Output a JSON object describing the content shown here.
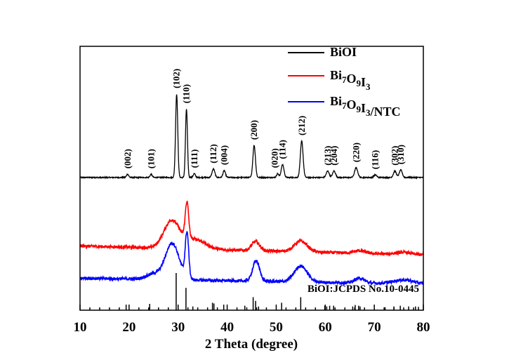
{
  "chart_data": {
    "type": "line",
    "title": "",
    "xlabel": "2 Theta (degree)",
    "ylabel": "",
    "xlim": [
      10,
      80
    ],
    "xticks": [
      "10",
      "20",
      "30",
      "40",
      "50",
      "60",
      "70",
      "80"
    ],
    "yticks_visible": false,
    "legend": {
      "placement": "top-right",
      "entries": [
        {
          "series": "BiOI",
          "base": "BiOI",
          "parts": []
        },
        {
          "series": "Bi7O9I3",
          "base": "Bi",
          "parts": [
            [
              "7",
              "sub"
            ],
            [
              "O",
              ""
            ],
            [
              "9",
              "sub"
            ],
            [
              "I",
              ""
            ],
            [
              "3",
              "sub"
            ]
          ]
        },
        {
          "series": "Bi7O9I3/NTC",
          "base": "Bi",
          "parts": [
            [
              "7",
              "sub"
            ],
            [
              "O",
              ""
            ],
            [
              "9",
              "sub"
            ],
            [
              "I",
              ""
            ],
            [
              "3",
              "sub"
            ],
            [
              "/NTC",
              ""
            ]
          ]
        }
      ]
    },
    "series": [
      {
        "name": "BiOI",
        "color": "#000000",
        "baseline": 6.2,
        "noise": 0.05,
        "peaks": [
          {
            "x": 19.7,
            "h": 0.15,
            "w": 0.22,
            "label": "(002)"
          },
          {
            "x": 24.5,
            "h": 0.15,
            "w": 0.22,
            "label": "(101)"
          },
          {
            "x": 29.7,
            "h": 3.9,
            "w": 0.22,
            "label": "(102)"
          },
          {
            "x": 31.7,
            "h": 3.2,
            "w": 0.2,
            "label": "(110)"
          },
          {
            "x": 33.3,
            "h": 0.18,
            "w": 0.22,
            "label": "(111)"
          },
          {
            "x": 37.2,
            "h": 0.4,
            "w": 0.28,
            "label": "(112)"
          },
          {
            "x": 39.4,
            "h": 0.32,
            "w": 0.25,
            "label": "(004)"
          },
          {
            "x": 45.5,
            "h": 1.5,
            "w": 0.26,
            "label": "(200)"
          },
          {
            "x": 50.3,
            "h": 0.18,
            "w": 0.22,
            "label": "(020)"
          },
          {
            "x": 51.3,
            "h": 0.6,
            "w": 0.28,
            "label": "(114)"
          },
          {
            "x": 55.2,
            "h": 1.7,
            "w": 0.28,
            "label": "(212)"
          },
          {
            "x": 60.5,
            "h": 0.3,
            "w": 0.3,
            "label": "(213)"
          },
          {
            "x": 61.8,
            "h": 0.3,
            "w": 0.3,
            "label": "(204)"
          },
          {
            "x": 66.3,
            "h": 0.45,
            "w": 0.32,
            "label": "(220)"
          },
          {
            "x": 70.2,
            "h": 0.12,
            "w": 0.3,
            "label": "(116)"
          },
          {
            "x": 74.2,
            "h": 0.3,
            "w": 0.3,
            "label": "(302)"
          },
          {
            "x": 75.4,
            "h": 0.35,
            "w": 0.3,
            "label": "(310)"
          }
        ]
      },
      {
        "name": "Bi7O9I3",
        "color": "#ff0000",
        "baseline": 3.0,
        "noise": 0.14,
        "slope": -0.006,
        "peaks": [
          {
            "x": 28.7,
            "h": 1.3,
            "w": 1.6
          },
          {
            "x": 31.8,
            "h": 1.7,
            "w": 0.35
          },
          {
            "x": 33.5,
            "h": 0.45,
            "w": 2.0
          },
          {
            "x": 45.8,
            "h": 0.42,
            "w": 0.8
          },
          {
            "x": 55.0,
            "h": 0.5,
            "w": 1.3
          },
          {
            "x": 67.0,
            "h": 0.12,
            "w": 1.2
          },
          {
            "x": 76.0,
            "h": 0.1,
            "w": 1.5
          }
        ]
      },
      {
        "name": "Bi7O9I3/NTC",
        "color": "#0000ff",
        "baseline": 1.5,
        "noise": 0.14,
        "slope": -0.004,
        "peaks": [
          {
            "x": 28.8,
            "h": 1.7,
            "w": 1.4
          },
          {
            "x": 31.8,
            "h": 2.1,
            "w": 0.35
          },
          {
            "x": 25.0,
            "h": 0.25,
            "w": 1.5
          },
          {
            "x": 45.9,
            "h": 0.95,
            "w": 0.7
          },
          {
            "x": 55.0,
            "h": 0.75,
            "w": 1.3
          },
          {
            "x": 67.0,
            "h": 0.22,
            "w": 1.0
          },
          {
            "x": 76.0,
            "h": 0.18,
            "w": 2.0
          }
        ]
      }
    ],
    "reference": {
      "label": "BiOI:JCPDS No.10-0445",
      "color": "#000000",
      "lines": [
        {
          "x": 19.4,
          "i": 0.15
        },
        {
          "x": 24.2,
          "i": 0.17
        },
        {
          "x": 29.6,
          "i": 1.0
        },
        {
          "x": 31.6,
          "i": 0.6
        },
        {
          "x": 33.0,
          "i": 0.1
        },
        {
          "x": 37.0,
          "i": 0.2
        },
        {
          "x": 37.3,
          "i": 0.18
        },
        {
          "x": 39.3,
          "i": 0.15
        },
        {
          "x": 43.6,
          "i": 0.12
        },
        {
          "x": 45.3,
          "i": 0.35
        },
        {
          "x": 45.8,
          "i": 0.25
        },
        {
          "x": 46.4,
          "i": 0.1
        },
        {
          "x": 51.1,
          "i": 0.2
        },
        {
          "x": 55.0,
          "i": 0.35
        },
        {
          "x": 59.9,
          "i": 0.12
        },
        {
          "x": 60.3,
          "i": 0.1
        },
        {
          "x": 60.9,
          "i": 0.12
        },
        {
          "x": 61.7,
          "i": 0.12
        },
        {
          "x": 65.6,
          "i": 0.1
        },
        {
          "x": 66.1,
          "i": 0.14
        },
        {
          "x": 66.8,
          "i": 0.12
        },
        {
          "x": 67.1,
          "i": 0.1
        },
        {
          "x": 72.2,
          "i": 0.08
        },
        {
          "x": 74.0,
          "i": 0.1
        },
        {
          "x": 75.3,
          "i": 0.12
        },
        {
          "x": 77.0,
          "i": 0.1
        },
        {
          "x": 78.4,
          "i": 0.1
        },
        {
          "x": 79.0,
          "i": 0.09
        }
      ]
    }
  }
}
